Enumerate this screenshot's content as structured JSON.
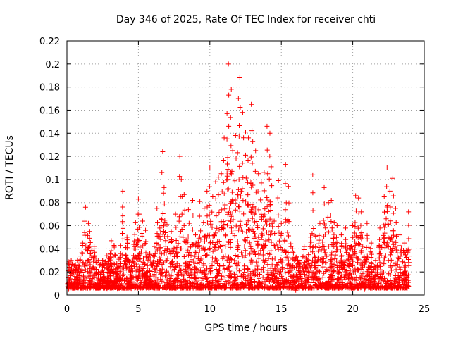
{
  "chart_data": {
    "type": "scatter",
    "title": "Day 346 of 2025, Rate Of TEC Index for receiver chti",
    "xlabel": "GPS time / hours",
    "ylabel": "ROTI / TECUs",
    "xlim": [
      0,
      25
    ],
    "ylim": [
      0,
      0.22
    ],
    "x_ticks": [
      0,
      5,
      10,
      15,
      20,
      25
    ],
    "x_tick_labels": [
      "0",
      "5",
      "10",
      "15",
      "20",
      "25"
    ],
    "y_ticks": [
      0,
      0.02,
      0.04,
      0.06,
      0.08,
      0.1,
      0.12,
      0.14,
      0.16,
      0.18,
      0.2,
      0.22
    ],
    "y_tick_labels": [
      "0",
      "0.02",
      "0.04",
      "0.06",
      "0.08",
      "0.1",
      "0.12",
      "0.14",
      "0.16",
      "0.18",
      "0.2",
      "0.22"
    ],
    "grid": true,
    "marker": "+",
    "marker_color": "#ff0000",
    "series": [
      {
        "name": "ROTI",
        "x": [
          0.1,
          0.3,
          0.5,
          0.7,
          0.9,
          1.1,
          1.3,
          1.5,
          1.6,
          1.9,
          2.2,
          2.5,
          2.8,
          3.1,
          3.3,
          3.5,
          3.9,
          4.2,
          4.5,
          4.8,
          5.0,
          5.1,
          5.3,
          5.5,
          5.8,
          6.1,
          6.3,
          6.5,
          6.7,
          6.8,
          7.0,
          7.3,
          7.6,
          7.9,
          8.0,
          8.2,
          8.5,
          8.8,
          9.0,
          9.3,
          9.6,
          9.8,
          10.0,
          10.2,
          10.4,
          10.6,
          10.8,
          11.0,
          11.2,
          11.3,
          11.5,
          11.6,
          11.8,
          12.0,
          12.1,
          12.3,
          12.5,
          12.7,
          12.9,
          13.0,
          13.2,
          13.4,
          13.6,
          13.8,
          14.0,
          14.2,
          14.3,
          14.5,
          14.8,
          15.0,
          15.3,
          15.5,
          15.8,
          16.0,
          16.3,
          16.6,
          16.9,
          17.2,
          17.4,
          17.7,
          18.0,
          18.3,
          18.5,
          18.7,
          18.9,
          19.2,
          19.5,
          19.8,
          20.0,
          20.2,
          20.4,
          20.6,
          20.8,
          21.0,
          21.3,
          21.6,
          21.9,
          22.2,
          22.4,
          22.6,
          22.8,
          23.0,
          23.3,
          23.6,
          23.9
        ],
        "y": [
          0.015,
          0.03,
          0.025,
          0.02,
          0.03,
          0.045,
          0.076,
          0.062,
          0.055,
          0.04,
          0.018,
          0.026,
          0.034,
          0.047,
          0.043,
          0.023,
          0.09,
          0.05,
          0.023,
          0.063,
          0.083,
          0.07,
          0.064,
          0.056,
          0.035,
          0.042,
          0.075,
          0.058,
          0.124,
          0.093,
          0.061,
          0.055,
          0.07,
          0.12,
          0.1,
          0.087,
          0.074,
          0.082,
          0.052,
          0.081,
          0.075,
          0.09,
          0.11,
          0.085,
          0.098,
          0.102,
          0.105,
          0.136,
          0.157,
          0.2,
          0.178,
          0.125,
          0.138,
          0.17,
          0.188,
          0.158,
          0.141,
          0.136,
          0.165,
          0.133,
          0.125,
          0.105,
          0.097,
          0.106,
          0.146,
          0.14,
          0.111,
          0.064,
          0.099,
          0.062,
          0.113,
          0.094,
          0.04,
          0.031,
          0.027,
          0.042,
          0.035,
          0.104,
          0.051,
          0.062,
          0.093,
          0.08,
          0.082,
          0.063,
          0.06,
          0.052,
          0.058,
          0.043,
          0.06,
          0.086,
          0.084,
          0.072,
          0.033,
          0.062,
          0.045,
          0.03,
          0.058,
          0.085,
          0.11,
          0.09,
          0.101,
          0.075,
          0.052,
          0.045,
          0.072
        ]
      }
    ]
  }
}
